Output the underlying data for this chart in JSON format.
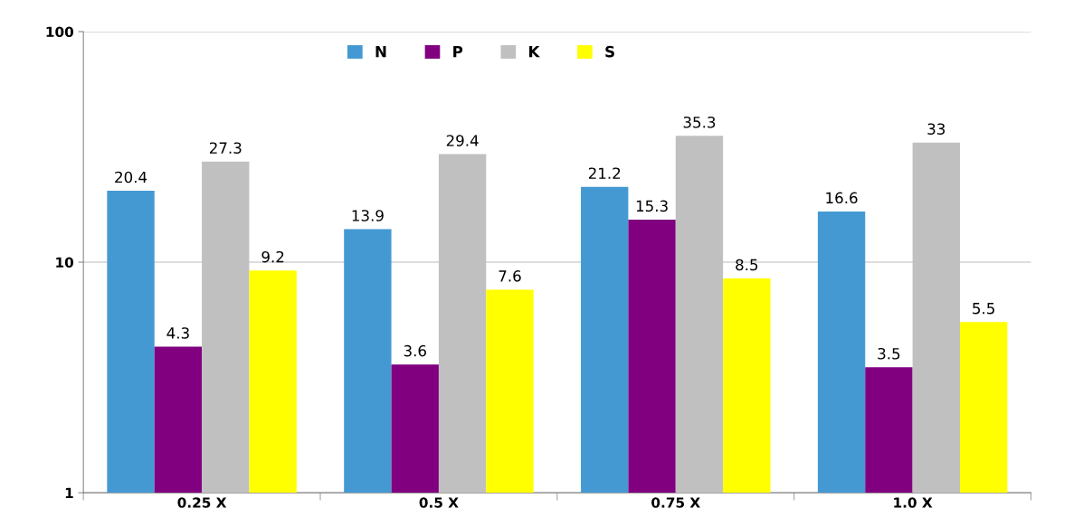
{
  "chart_data": {
    "type": "bar",
    "categories": [
      "0.25 X",
      "0.5 X",
      "0.75 X",
      "1.0 X"
    ],
    "series": [
      {
        "name": "N",
        "color": "#4599d3",
        "values": [
          20.4,
          13.9,
          21.2,
          16.6
        ]
      },
      {
        "name": "P",
        "color": "#800080",
        "values": [
          4.3,
          3.6,
          15.3,
          3.5
        ]
      },
      {
        "name": "K",
        "color": "#c0c0c0",
        "values": [
          27.3,
          29.4,
          35.3,
          33
        ]
      },
      {
        "name": "S",
        "color": "#ffff00",
        "values": [
          9.2,
          7.6,
          8.5,
          5.5
        ]
      }
    ],
    "log": true,
    "ylim": [
      1,
      100
    ],
    "yticks": [
      1,
      10,
      100
    ],
    "grid": "y",
    "legend": "top",
    "data_labels": true
  }
}
